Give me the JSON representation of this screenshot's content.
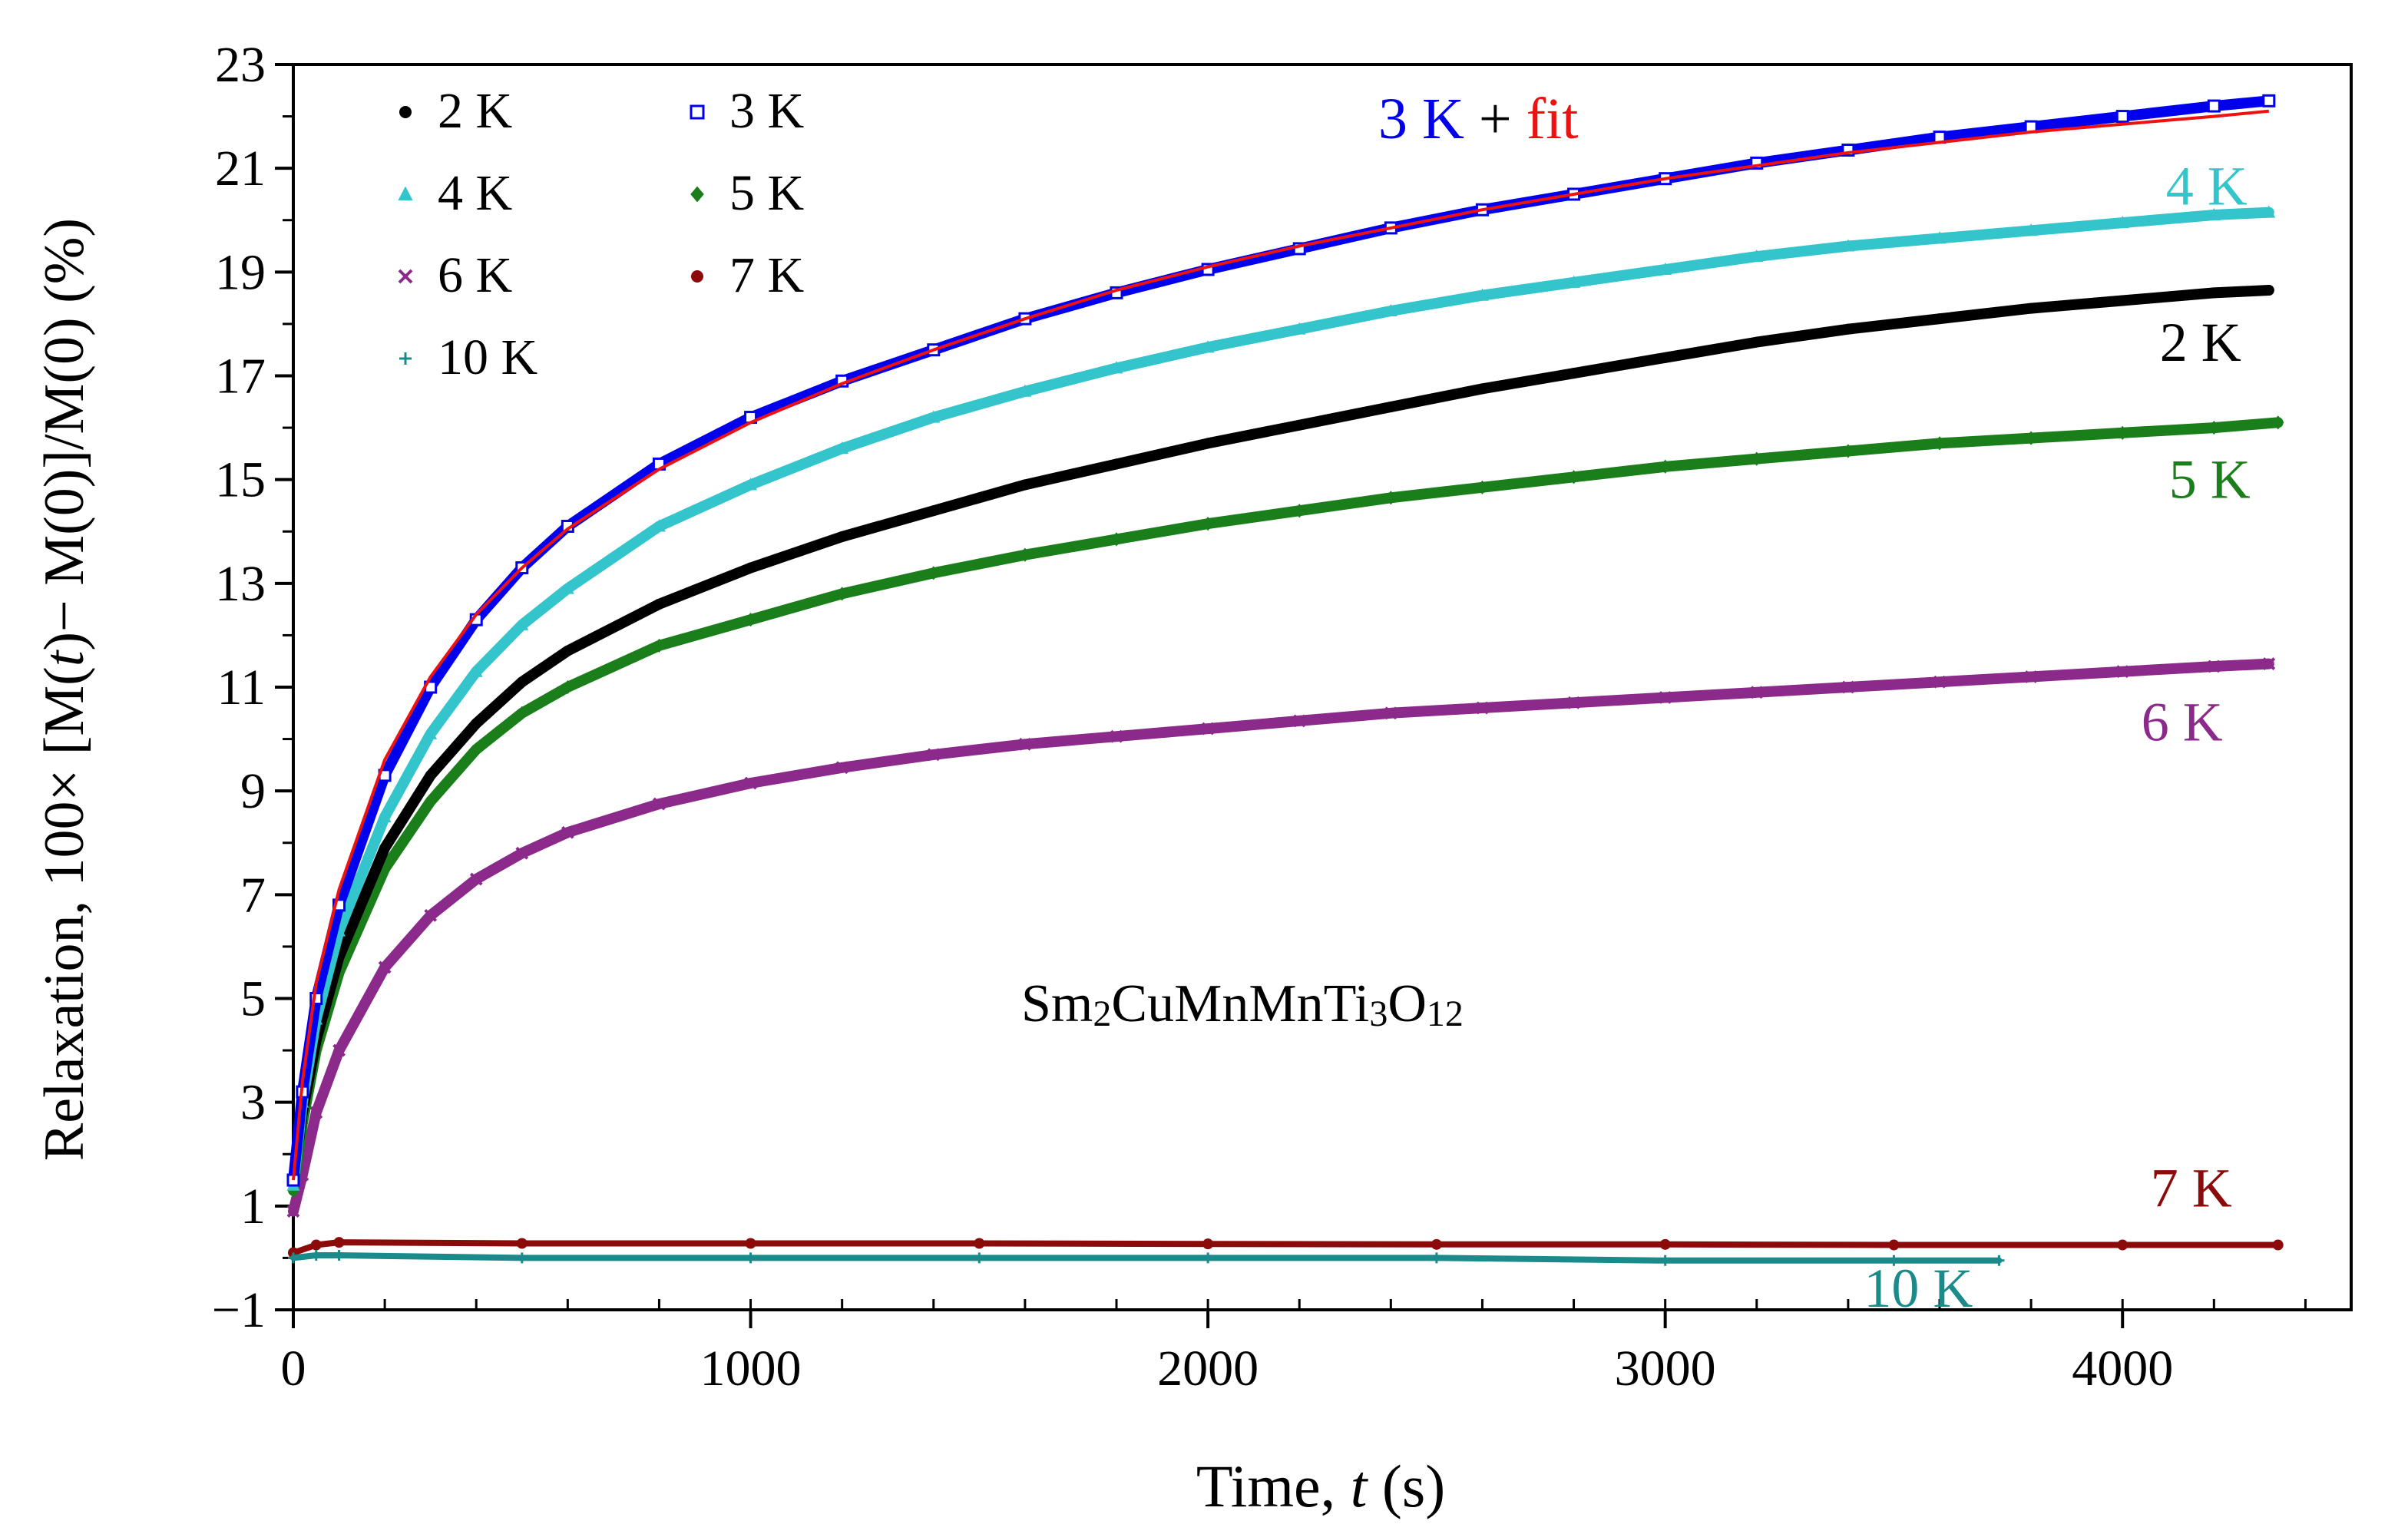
{
  "chart_data": {
    "type": "scatter",
    "title": "",
    "xlabel": {
      "pre": "Time, ",
      "italic": "t",
      "post": " (s)"
    },
    "ylabel": {
      "pre": "Relaxation,  100× [M(",
      "italic": "t",
      "post": ")− M(0)]/M(0) (%)"
    },
    "xlim": [
      0,
      4500
    ],
    "ylim": [
      -1,
      23
    ],
    "x_ticks": [
      0,
      1000,
      2000,
      3000,
      4000
    ],
    "x_ticks_minor_step": 200,
    "y_ticks": [
      -1,
      1,
      3,
      5,
      7,
      9,
      11,
      13,
      15,
      17,
      19,
      21,
      23
    ],
    "y_tick_labels": [
      "−1",
      "1",
      "3",
      "5",
      "7",
      "9",
      "11",
      "13",
      "15",
      "17",
      "19",
      "21",
      "23"
    ],
    "compound": {
      "p1": "Sm",
      "s1": "2",
      "p2": "CuMnMnTi",
      "s2": "3",
      "p3": "O",
      "s3": "12"
    },
    "title_annotation": {
      "series": "3 K",
      "plus": " + ",
      "fit": "fit"
    },
    "legend_position": "top-left",
    "series": [
      {
        "name": "2 K",
        "color": "#000000",
        "marker": "circle",
        "end_label": "2 K",
        "points": [
          [
            0,
            1.5
          ],
          [
            20,
            2.8
          ],
          [
            50,
            4.2
          ],
          [
            100,
            5.8
          ],
          [
            200,
            7.9
          ],
          [
            300,
            9.3
          ],
          [
            400,
            10.3
          ],
          [
            500,
            11.1
          ],
          [
            600,
            11.7
          ],
          [
            800,
            12.6
          ],
          [
            1000,
            13.3
          ],
          [
            1200,
            13.9
          ],
          [
            1400,
            14.4
          ],
          [
            1600,
            14.9
          ],
          [
            1800,
            15.3
          ],
          [
            2000,
            15.7
          ],
          [
            2200,
            16.05
          ],
          [
            2400,
            16.4
          ],
          [
            2600,
            16.75
          ],
          [
            2800,
            17.05
          ],
          [
            3000,
            17.35
          ],
          [
            3200,
            17.65
          ],
          [
            3400,
            17.9
          ],
          [
            3600,
            18.1
          ],
          [
            3800,
            18.3
          ],
          [
            4000,
            18.45
          ],
          [
            4200,
            18.6
          ],
          [
            4320,
            18.65
          ]
        ]
      },
      {
        "name": "3 K",
        "color": "#0000ee",
        "marker": "square",
        "end_label": "",
        "points": [
          [
            0,
            1.5
          ],
          [
            20,
            3.2
          ],
          [
            50,
            5.0
          ],
          [
            100,
            6.8
          ],
          [
            200,
            9.3
          ],
          [
            300,
            11.0
          ],
          [
            400,
            12.3
          ],
          [
            500,
            13.3
          ],
          [
            600,
            14.1
          ],
          [
            800,
            15.3
          ],
          [
            1000,
            16.2
          ],
          [
            1200,
            16.9
          ],
          [
            1400,
            17.5
          ],
          [
            1600,
            18.1
          ],
          [
            1800,
            18.6
          ],
          [
            2000,
            19.05
          ],
          [
            2200,
            19.45
          ],
          [
            2400,
            19.85
          ],
          [
            2600,
            20.2
          ],
          [
            2800,
            20.5
          ],
          [
            3000,
            20.8
          ],
          [
            3200,
            21.1
          ],
          [
            3400,
            21.35
          ],
          [
            3600,
            21.6
          ],
          [
            3800,
            21.8
          ],
          [
            4000,
            22.0
          ],
          [
            4200,
            22.2
          ],
          [
            4320,
            22.3
          ]
        ]
      },
      {
        "name": "4 K",
        "color": "#33c4cc",
        "marker": "triangle",
        "end_label": "4 K",
        "points": [
          [
            0,
            1.4
          ],
          [
            20,
            3.0
          ],
          [
            50,
            4.6
          ],
          [
            100,
            6.3
          ],
          [
            200,
            8.5
          ],
          [
            300,
            10.1
          ],
          [
            400,
            11.3
          ],
          [
            500,
            12.2
          ],
          [
            600,
            12.9
          ],
          [
            800,
            14.1
          ],
          [
            1000,
            14.9
          ],
          [
            1200,
            15.6
          ],
          [
            1400,
            16.2
          ],
          [
            1600,
            16.7
          ],
          [
            1800,
            17.15
          ],
          [
            2000,
            17.55
          ],
          [
            2200,
            17.9
          ],
          [
            2400,
            18.25
          ],
          [
            2600,
            18.55
          ],
          [
            2800,
            18.8
          ],
          [
            3000,
            19.05
          ],
          [
            3200,
            19.3
          ],
          [
            3400,
            19.5
          ],
          [
            3600,
            19.65
          ],
          [
            3800,
            19.8
          ],
          [
            4000,
            19.95
          ],
          [
            4200,
            20.1
          ],
          [
            4320,
            20.15
          ]
        ]
      },
      {
        "name": "5 K",
        "color": "#1a7f1a",
        "marker": "diamond",
        "end_label": "5 K",
        "points": [
          [
            0,
            1.3
          ],
          [
            20,
            2.6
          ],
          [
            50,
            4.0
          ],
          [
            100,
            5.5
          ],
          [
            200,
            7.5
          ],
          [
            300,
            8.8
          ],
          [
            400,
            9.8
          ],
          [
            500,
            10.5
          ],
          [
            600,
            11.0
          ],
          [
            800,
            11.8
          ],
          [
            1000,
            12.3
          ],
          [
            1200,
            12.8
          ],
          [
            1400,
            13.2
          ],
          [
            1600,
            13.55
          ],
          [
            1800,
            13.85
          ],
          [
            2000,
            14.15
          ],
          [
            2200,
            14.4
          ],
          [
            2400,
            14.65
          ],
          [
            2600,
            14.85
          ],
          [
            2800,
            15.05
          ],
          [
            3000,
            15.25
          ],
          [
            3200,
            15.4
          ],
          [
            3400,
            15.55
          ],
          [
            3600,
            15.7
          ],
          [
            3800,
            15.8
          ],
          [
            4000,
            15.9
          ],
          [
            4200,
            16.0
          ],
          [
            4340,
            16.1
          ]
        ]
      },
      {
        "name": "6 K",
        "color": "#8b2a8b",
        "marker": "cross",
        "end_label": "6 K",
        "points": [
          [
            0,
            0.9
          ],
          [
            20,
            1.6
          ],
          [
            50,
            2.8
          ],
          [
            100,
            4.0
          ],
          [
            200,
            5.6
          ],
          [
            300,
            6.6
          ],
          [
            400,
            7.3
          ],
          [
            500,
            7.8
          ],
          [
            600,
            8.2
          ],
          [
            800,
            8.75
          ],
          [
            1000,
            9.15
          ],
          [
            1200,
            9.45
          ],
          [
            1400,
            9.7
          ],
          [
            1600,
            9.9
          ],
          [
            1800,
            10.05
          ],
          [
            2000,
            10.2
          ],
          [
            2200,
            10.35
          ],
          [
            2400,
            10.5
          ],
          [
            2600,
            10.6
          ],
          [
            2800,
            10.7
          ],
          [
            3000,
            10.8
          ],
          [
            3200,
            10.9
          ],
          [
            3400,
            11.0
          ],
          [
            3600,
            11.1
          ],
          [
            3800,
            11.2
          ],
          [
            4000,
            11.3
          ],
          [
            4200,
            11.4
          ],
          [
            4320,
            11.45
          ]
        ]
      },
      {
        "name": "7 K",
        "color": "#8b0a0a",
        "marker": "circle",
        "end_label": "7 K",
        "points": [
          [
            0,
            0.1
          ],
          [
            50,
            0.25
          ],
          [
            100,
            0.3
          ],
          [
            500,
            0.28
          ],
          [
            1000,
            0.28
          ],
          [
            1500,
            0.28
          ],
          [
            2000,
            0.27
          ],
          [
            2500,
            0.26
          ],
          [
            3000,
            0.26
          ],
          [
            3500,
            0.25
          ],
          [
            4000,
            0.25
          ],
          [
            4340,
            0.25
          ]
        ]
      },
      {
        "name": "10 K",
        "color": "#1a8a8a",
        "marker": "plus",
        "end_label": "10 K",
        "points": [
          [
            0,
            0.0
          ],
          [
            50,
            0.05
          ],
          [
            100,
            0.05
          ],
          [
            500,
            0.0
          ],
          [
            1000,
            0.0
          ],
          [
            1500,
            0.0
          ],
          [
            2000,
            0.0
          ],
          [
            2500,
            0.0
          ],
          [
            3000,
            -0.05
          ],
          [
            3500,
            -0.05
          ],
          [
            3730,
            -0.05
          ]
        ]
      }
    ],
    "fit": {
      "name": "fit",
      "color": "#ee1111",
      "points": [
        [
          0,
          1.5
        ],
        [
          20,
          3.4
        ],
        [
          50,
          5.3
        ],
        [
          100,
          7.1
        ],
        [
          200,
          9.6
        ],
        [
          300,
          11.2
        ],
        [
          400,
          12.4
        ],
        [
          500,
          13.3
        ],
        [
          600,
          14.05
        ],
        [
          800,
          15.2
        ],
        [
          1000,
          16.1
        ],
        [
          1200,
          16.85
        ],
        [
          1400,
          17.5
        ],
        [
          1600,
          18.1
        ],
        [
          1800,
          18.65
        ],
        [
          2000,
          19.1
        ],
        [
          2200,
          19.5
        ],
        [
          2400,
          19.85
        ],
        [
          2600,
          20.2
        ],
        [
          2800,
          20.5
        ],
        [
          3000,
          20.8
        ],
        [
          3200,
          21.05
        ],
        [
          3400,
          21.3
        ],
        [
          3600,
          21.5
        ],
        [
          3800,
          21.7
        ],
        [
          4000,
          21.85
        ],
        [
          4200,
          22.0
        ],
        [
          4320,
          22.1
        ]
      ]
    },
    "legend_columns": [
      [
        "2 K",
        "4 K",
        "6 K",
        "10 K"
      ],
      [
        "3 K",
        "5 K",
        "7 K"
      ]
    ]
  }
}
